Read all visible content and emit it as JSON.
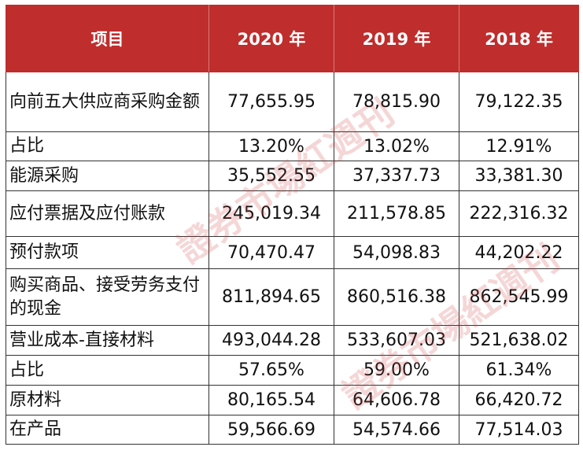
{
  "table": {
    "headers": [
      "项目",
      "2020 年",
      "2019 年",
      "2018 年"
    ],
    "rows": [
      {
        "item": "向前五大供应商采购金额",
        "y2020": "77,655.95",
        "y2019": "78,815.90",
        "y2018": "79,122.35"
      },
      {
        "item": "占比",
        "y2020": "13.20%",
        "y2019": "13.02%",
        "y2018": "12.91%"
      },
      {
        "item": "能源采购",
        "y2020": "35,552.55",
        "y2019": "37,337.73",
        "y2018": "33,381.30"
      },
      {
        "item": "应付票据及应付账款",
        "y2020": "245,019.34",
        "y2019": "211,578.85",
        "y2018": "222,316.32"
      },
      {
        "item": "预付款项",
        "y2020": "70,470.47",
        "y2019": "54,098.83",
        "y2018": "44,202.22"
      },
      {
        "item": "购买商品、接受劳务支付的现金",
        "y2020": "811,894.65",
        "y2019": "860,516.38",
        "y2018": "862,545.99"
      },
      {
        "item": "营业成本-直接材料",
        "y2020": "493,044.28",
        "y2019": "533,607.03",
        "y2018": "521,638.02"
      },
      {
        "item": "占比",
        "y2020": "57.65%",
        "y2019": "59.00%",
        "y2018": "61.34%"
      },
      {
        "item": "原材料",
        "y2020": "80,165.54",
        "y2019": "64,606.78",
        "y2018": "66,420.72"
      },
      {
        "item": "在产品",
        "y2020": "59,566.69",
        "y2019": "54,574.66",
        "y2018": "77,514.03"
      }
    ]
  },
  "watermark": {
    "text": "證券市場紅週刊",
    "color": "#d24646"
  }
}
